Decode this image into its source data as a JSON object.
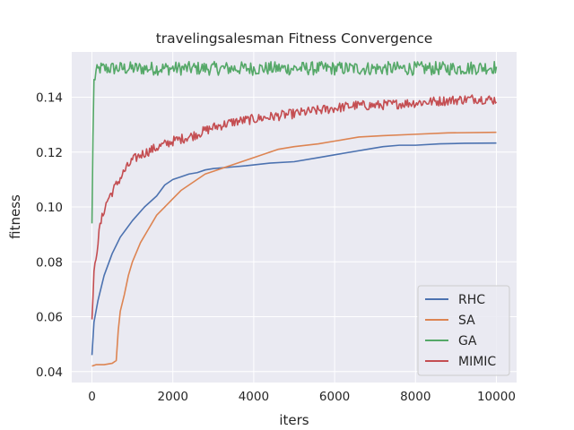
{
  "chart_data": {
    "type": "line",
    "title": "travelingsalesman Fitness Convergence",
    "xlabel": "iters",
    "ylabel": "fitness",
    "xlim": [
      -500,
      10500
    ],
    "ylim": [
      0.036,
      0.1565
    ],
    "xticks": [
      0,
      2000,
      4000,
      6000,
      8000,
      10000
    ],
    "yticks": [
      0.04,
      0.06,
      0.08,
      0.1,
      0.12,
      0.14
    ],
    "xtick_labels": [
      "0",
      "2000",
      "4000",
      "6000",
      "8000",
      "10000"
    ],
    "ytick_labels": [
      "0.04",
      "0.06",
      "0.08",
      "0.10",
      "0.12",
      "0.14"
    ],
    "grid": true,
    "background": "#eaeaf2",
    "legend_position": "lower-right",
    "series": [
      {
        "name": "RHC",
        "color": "#4c72b0",
        "noise": 0.0,
        "points": [
          [
            0,
            0.046
          ],
          [
            50,
            0.058
          ],
          [
            150,
            0.066
          ],
          [
            300,
            0.075
          ],
          [
            500,
            0.083
          ],
          [
            700,
            0.089
          ],
          [
            1000,
            0.095
          ],
          [
            1300,
            0.1
          ],
          [
            1600,
            0.104
          ],
          [
            1800,
            0.108
          ],
          [
            2000,
            0.11
          ],
          [
            2200,
            0.111
          ],
          [
            2400,
            0.112
          ],
          [
            2600,
            0.1125
          ],
          [
            2800,
            0.1135
          ],
          [
            3000,
            0.114
          ],
          [
            3400,
            0.1145
          ],
          [
            3800,
            0.115
          ],
          [
            4400,
            0.116
          ],
          [
            5000,
            0.1165
          ],
          [
            5600,
            0.118
          ],
          [
            6000,
            0.119
          ],
          [
            6400,
            0.12
          ],
          [
            6800,
            0.121
          ],
          [
            7200,
            0.122
          ],
          [
            7600,
            0.1225
          ],
          [
            8000,
            0.1225
          ],
          [
            8600,
            0.123
          ],
          [
            9200,
            0.1232
          ],
          [
            10000,
            0.1233
          ]
        ]
      },
      {
        "name": "SA",
        "color": "#dd8452",
        "noise": 0.0,
        "points": [
          [
            0,
            0.042
          ],
          [
            100,
            0.0425
          ],
          [
            300,
            0.0425
          ],
          [
            500,
            0.043
          ],
          [
            600,
            0.044
          ],
          [
            650,
            0.055
          ],
          [
            700,
            0.062
          ],
          [
            800,
            0.068
          ],
          [
            900,
            0.075
          ],
          [
            1000,
            0.08
          ],
          [
            1200,
            0.087
          ],
          [
            1400,
            0.092
          ],
          [
            1600,
            0.097
          ],
          [
            1800,
            0.1
          ],
          [
            2000,
            0.103
          ],
          [
            2200,
            0.106
          ],
          [
            2400,
            0.108
          ],
          [
            2600,
            0.11
          ],
          [
            2800,
            0.112
          ],
          [
            3000,
            0.113
          ],
          [
            3400,
            0.115
          ],
          [
            3800,
            0.117
          ],
          [
            4200,
            0.119
          ],
          [
            4600,
            0.121
          ],
          [
            5000,
            0.122
          ],
          [
            5600,
            0.123
          ],
          [
            6000,
            0.124
          ],
          [
            6600,
            0.1255
          ],
          [
            7200,
            0.126
          ],
          [
            8000,
            0.1265
          ],
          [
            8800,
            0.127
          ],
          [
            10000,
            0.1272
          ]
        ]
      },
      {
        "name": "GA",
        "color": "#55a868",
        "noise": 0.0025,
        "points": [
          [
            0,
            0.094
          ],
          [
            40,
            0.145
          ],
          [
            100,
            0.149
          ],
          [
            200,
            0.1505
          ],
          [
            400,
            0.1505
          ],
          [
            1000,
            0.1505
          ],
          [
            2000,
            0.1505
          ],
          [
            3000,
            0.1505
          ],
          [
            4000,
            0.1505
          ],
          [
            5000,
            0.1505
          ],
          [
            6000,
            0.1505
          ],
          [
            7000,
            0.1505
          ],
          [
            8000,
            0.1505
          ],
          [
            9000,
            0.1505
          ],
          [
            10000,
            0.151
          ]
        ]
      },
      {
        "name": "MIMIC",
        "color": "#c44e52",
        "noise": 0.0018,
        "points": [
          [
            0,
            0.059
          ],
          [
            50,
            0.075
          ],
          [
            100,
            0.082
          ],
          [
            200,
            0.093
          ],
          [
            300,
            0.099
          ],
          [
            400,
            0.103
          ],
          [
            600,
            0.108
          ],
          [
            800,
            0.113
          ],
          [
            1000,
            0.117
          ],
          [
            1200,
            0.119
          ],
          [
            1500,
            0.121
          ],
          [
            2000,
            0.124
          ],
          [
            2500,
            0.126
          ],
          [
            3000,
            0.129
          ],
          [
            3500,
            0.131
          ],
          [
            4000,
            0.132
          ],
          [
            4500,
            0.133
          ],
          [
            5000,
            0.134
          ],
          [
            5500,
            0.135
          ],
          [
            6000,
            0.136
          ],
          [
            6500,
            0.137
          ],
          [
            7000,
            0.137
          ],
          [
            7500,
            0.1375
          ],
          [
            8000,
            0.138
          ],
          [
            8500,
            0.1385
          ],
          [
            9000,
            0.139
          ],
          [
            9500,
            0.1395
          ],
          [
            10000,
            0.139
          ]
        ]
      }
    ]
  }
}
